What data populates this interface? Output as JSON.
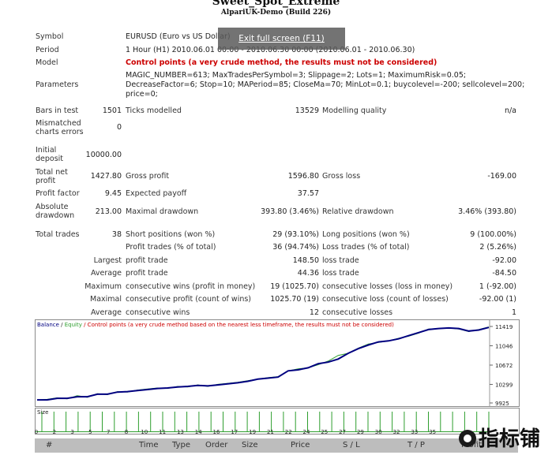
{
  "header": {
    "title": "Sweet_Spot_Extreme",
    "subtitle": "AlpariUK-Demo (Build 226)"
  },
  "overlay": {
    "exit_fullscreen": "Exit full screen (F11)"
  },
  "report": {
    "symbol_label": "Symbol",
    "symbol_value": "EURUSD (Euro vs US Dollar)",
    "period_label": "Period",
    "period_value": "1 Hour (H1) 2010.06.01 00:00 - 2010.06.30 00:00 (2010.06.01 - 2010.06.30)",
    "model_label": "Model",
    "model_value": "Control points (a very crude method, the results must not be considered)",
    "parameters_label": "Parameters",
    "parameters_line1": "MAGIC_NUMBER=613; MaxTradesPerSymbol=3; Slippage=2; Lots=1; MaximumRisk=0.05;",
    "parameters_line2": "DecreaseFactor=6; Stop=10; MAPeriod=85; CloseMa=70; MinLot=0.1; buycolevel=-200; sellcolevel=200;",
    "parameters_line3": "price=0;",
    "bars_label": "Bars in test",
    "bars_value": "1501",
    "ticks_label": "Ticks modelled",
    "ticks_value": "13529",
    "quality_label": "Modelling quality",
    "quality_value": "n/a",
    "mismatch_label_1": "Mismatched",
    "mismatch_label_2": "charts errors",
    "mismatch_value": "0",
    "initial_label_1": "Initial",
    "initial_label_2": "deposit",
    "initial_value": "10000.00",
    "netprofit_label_1": "Total net",
    "netprofit_label_2": "profit",
    "netprofit_value": "1427.80",
    "grossprofit_label": "Gross profit",
    "grossprofit_value": "1596.80",
    "grossloss_label": "Gross loss",
    "grossloss_value": "-169.00",
    "pf_label": "Profit factor",
    "pf_value": "9.45",
    "payoff_label": "Expected payoff",
    "payoff_value": "37.57",
    "absdd_label_1": "Absolute",
    "absdd_label_2": "drawdown",
    "absdd_value": "213.00",
    "maxdd_label": "Maximal drawdown",
    "maxdd_value": "393.80 (3.46%)",
    "reldd_label": "Relative drawdown",
    "reldd_value": "3.46% (393.80)",
    "trades_label": "Total trades",
    "trades_value": "38",
    "short_label": "Short positions (won %)",
    "short_value": "29 (93.10%)",
    "long_label": "Long positions (won %)",
    "long_value": "9 (100.00%)",
    "pt_label": "Profit trades (% of total)",
    "pt_value": "36 (94.74%)",
    "lt_label": "Loss trades (% of total)",
    "lt_value": "2 (5.26%)",
    "largest_label": "Largest",
    "largest_profit_label": "profit trade",
    "largest_profit_value": "148.50",
    "largest_loss_label": "loss trade",
    "largest_loss_value": "-92.00",
    "average_label": "Average",
    "average_profit_label": "profit trade",
    "average_profit_value": "44.36",
    "average_loss_label": "loss trade",
    "average_loss_value": "-84.50",
    "maximum_label": "Maximum",
    "max_wins_label": "consecutive wins (profit in money)",
    "max_wins_value": "19 (1025.70)",
    "max_losses_label": "consecutive losses (loss in money)",
    "max_losses_value": "1 (-92.00)",
    "maximal_label": "Maximal",
    "maximal_profit_label": "consecutive profit (count of wins)",
    "maximal_profit_value": "1025.70 (19)",
    "maximal_loss_label": "consecutive loss (count of losses)",
    "maximal_loss_value": "-92.00 (1)",
    "avg2_label": "Average",
    "avg_wins_label": "consecutive wins",
    "avg_wins_value": "12",
    "avg_losses_label": "consecutive losses",
    "avg_losses_value": "1"
  },
  "chart": {
    "legend_balance": "Balance",
    "legend_sep": " / ",
    "legend_equity": "Equity",
    "legend_note": " / Control points (a very crude method based on the nearest less timeframe, the results must not be considered)",
    "balance_color": "#000080",
    "equity_color": "#2e9e2e",
    "note_color": "#cc0000",
    "y_ticks": [
      "11419",
      "11046",
      "10672",
      "10299",
      "9925"
    ],
    "size_label": "Size",
    "x_ticks": [
      "0",
      "2",
      "3",
      "5",
      "7",
      "8",
      "10",
      "11",
      "13",
      "14",
      "16",
      "17",
      "19",
      "21",
      "22",
      "24",
      "25",
      "27",
      "29",
      "30",
      "32",
      "33",
      "35"
    ]
  },
  "chart_data": {
    "type": "line",
    "ylim": [
      9925,
      11419
    ],
    "series": [
      {
        "name": "Balance",
        "values": [
          10000,
          10000,
          10030,
          10030,
          10060,
          10060,
          10110,
          10110,
          10150,
          10160,
          10180,
          10200,
          10220,
          10230,
          10250,
          10260,
          10280,
          10270,
          10290,
          10310,
          10330,
          10360,
          10400,
          10420,
          10440,
          10560,
          10580,
          10620,
          10700,
          10730,
          10790,
          10900,
          10990,
          11060,
          11120,
          11140,
          11180,
          11240,
          11300,
          11360,
          11380,
          11390,
          11380,
          11330,
          11350,
          11400
        ]
      },
      {
        "name": "Equity",
        "values": [
          10000,
          10010,
          10040,
          10020,
          10080,
          10050,
          10120,
          10100,
          10160,
          10150,
          10190,
          10210,
          10230,
          10220,
          10260,
          10250,
          10290,
          10260,
          10300,
          10320,
          10340,
          10370,
          10400,
          10430,
          10450,
          10560,
          10600,
          10620,
          10680,
          10750,
          10860,
          10900,
          11000,
          11080,
          11110,
          11140,
          11190,
          11230,
          11290,
          11370,
          11380,
          11390,
          11370,
          11320,
          11360,
          11410
        ]
      }
    ],
    "trade_count": 38
  },
  "table": {
    "columns": [
      "#",
      "Time",
      "Type",
      "Order",
      "Size",
      "Price",
      "S / L",
      "T / P",
      "Profit"
    ]
  },
  "watermark": {
    "text": "指标铺"
  }
}
